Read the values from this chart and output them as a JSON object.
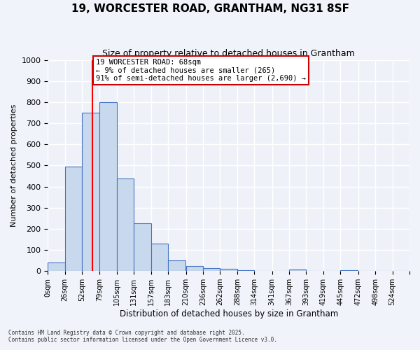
{
  "title_line1": "19, WORCESTER ROAD, GRANTHAM, NG31 8SF",
  "title_line2": "Size of property relative to detached houses in Grantham",
  "xlabel": "Distribution of detached houses by size in Grantham",
  "ylabel": "Number of detached properties",
  "bin_labels": [
    "0sqm",
    "26sqm",
    "52sqm",
    "79sqm",
    "105sqm",
    "131sqm",
    "157sqm",
    "183sqm",
    "210sqm",
    "236sqm",
    "262sqm",
    "288sqm",
    "314sqm",
    "341sqm",
    "367sqm",
    "393sqm",
    "419sqm",
    "445sqm",
    "472sqm",
    "498sqm",
    "524sqm"
  ],
  "bar_values": [
    40,
    495,
    750,
    800,
    440,
    225,
    130,
    50,
    25,
    15,
    10,
    5,
    0,
    0,
    8,
    0,
    0,
    5,
    0,
    0,
    0
  ],
  "bar_color": "#c9d9ed",
  "bar_edge_color": "#4472c4",
  "property_line_x": 68,
  "bin_edges": [
    0,
    26,
    52,
    79,
    105,
    131,
    157,
    183,
    210,
    236,
    262,
    288,
    314,
    341,
    367,
    393,
    419,
    445,
    472,
    498,
    524
  ],
  "annotation_text": "19 WORCESTER ROAD: 68sqm\n← 9% of detached houses are smaller (265)\n91% of semi-detached houses are larger (2,690) →",
  "annotation_box_color": "#ffffff",
  "annotation_box_edge": "#cc0000",
  "ylim": [
    0,
    1000
  ],
  "yticks": [
    0,
    100,
    200,
    300,
    400,
    500,
    600,
    700,
    800,
    900,
    1000
  ],
  "background_color": "#eef2f8",
  "grid_color": "#ffffff",
  "footer_line1": "Contains HM Land Registry data © Crown copyright and database right 2025.",
  "footer_line2": "Contains public sector information licensed under the Open Government Licence v3.0."
}
